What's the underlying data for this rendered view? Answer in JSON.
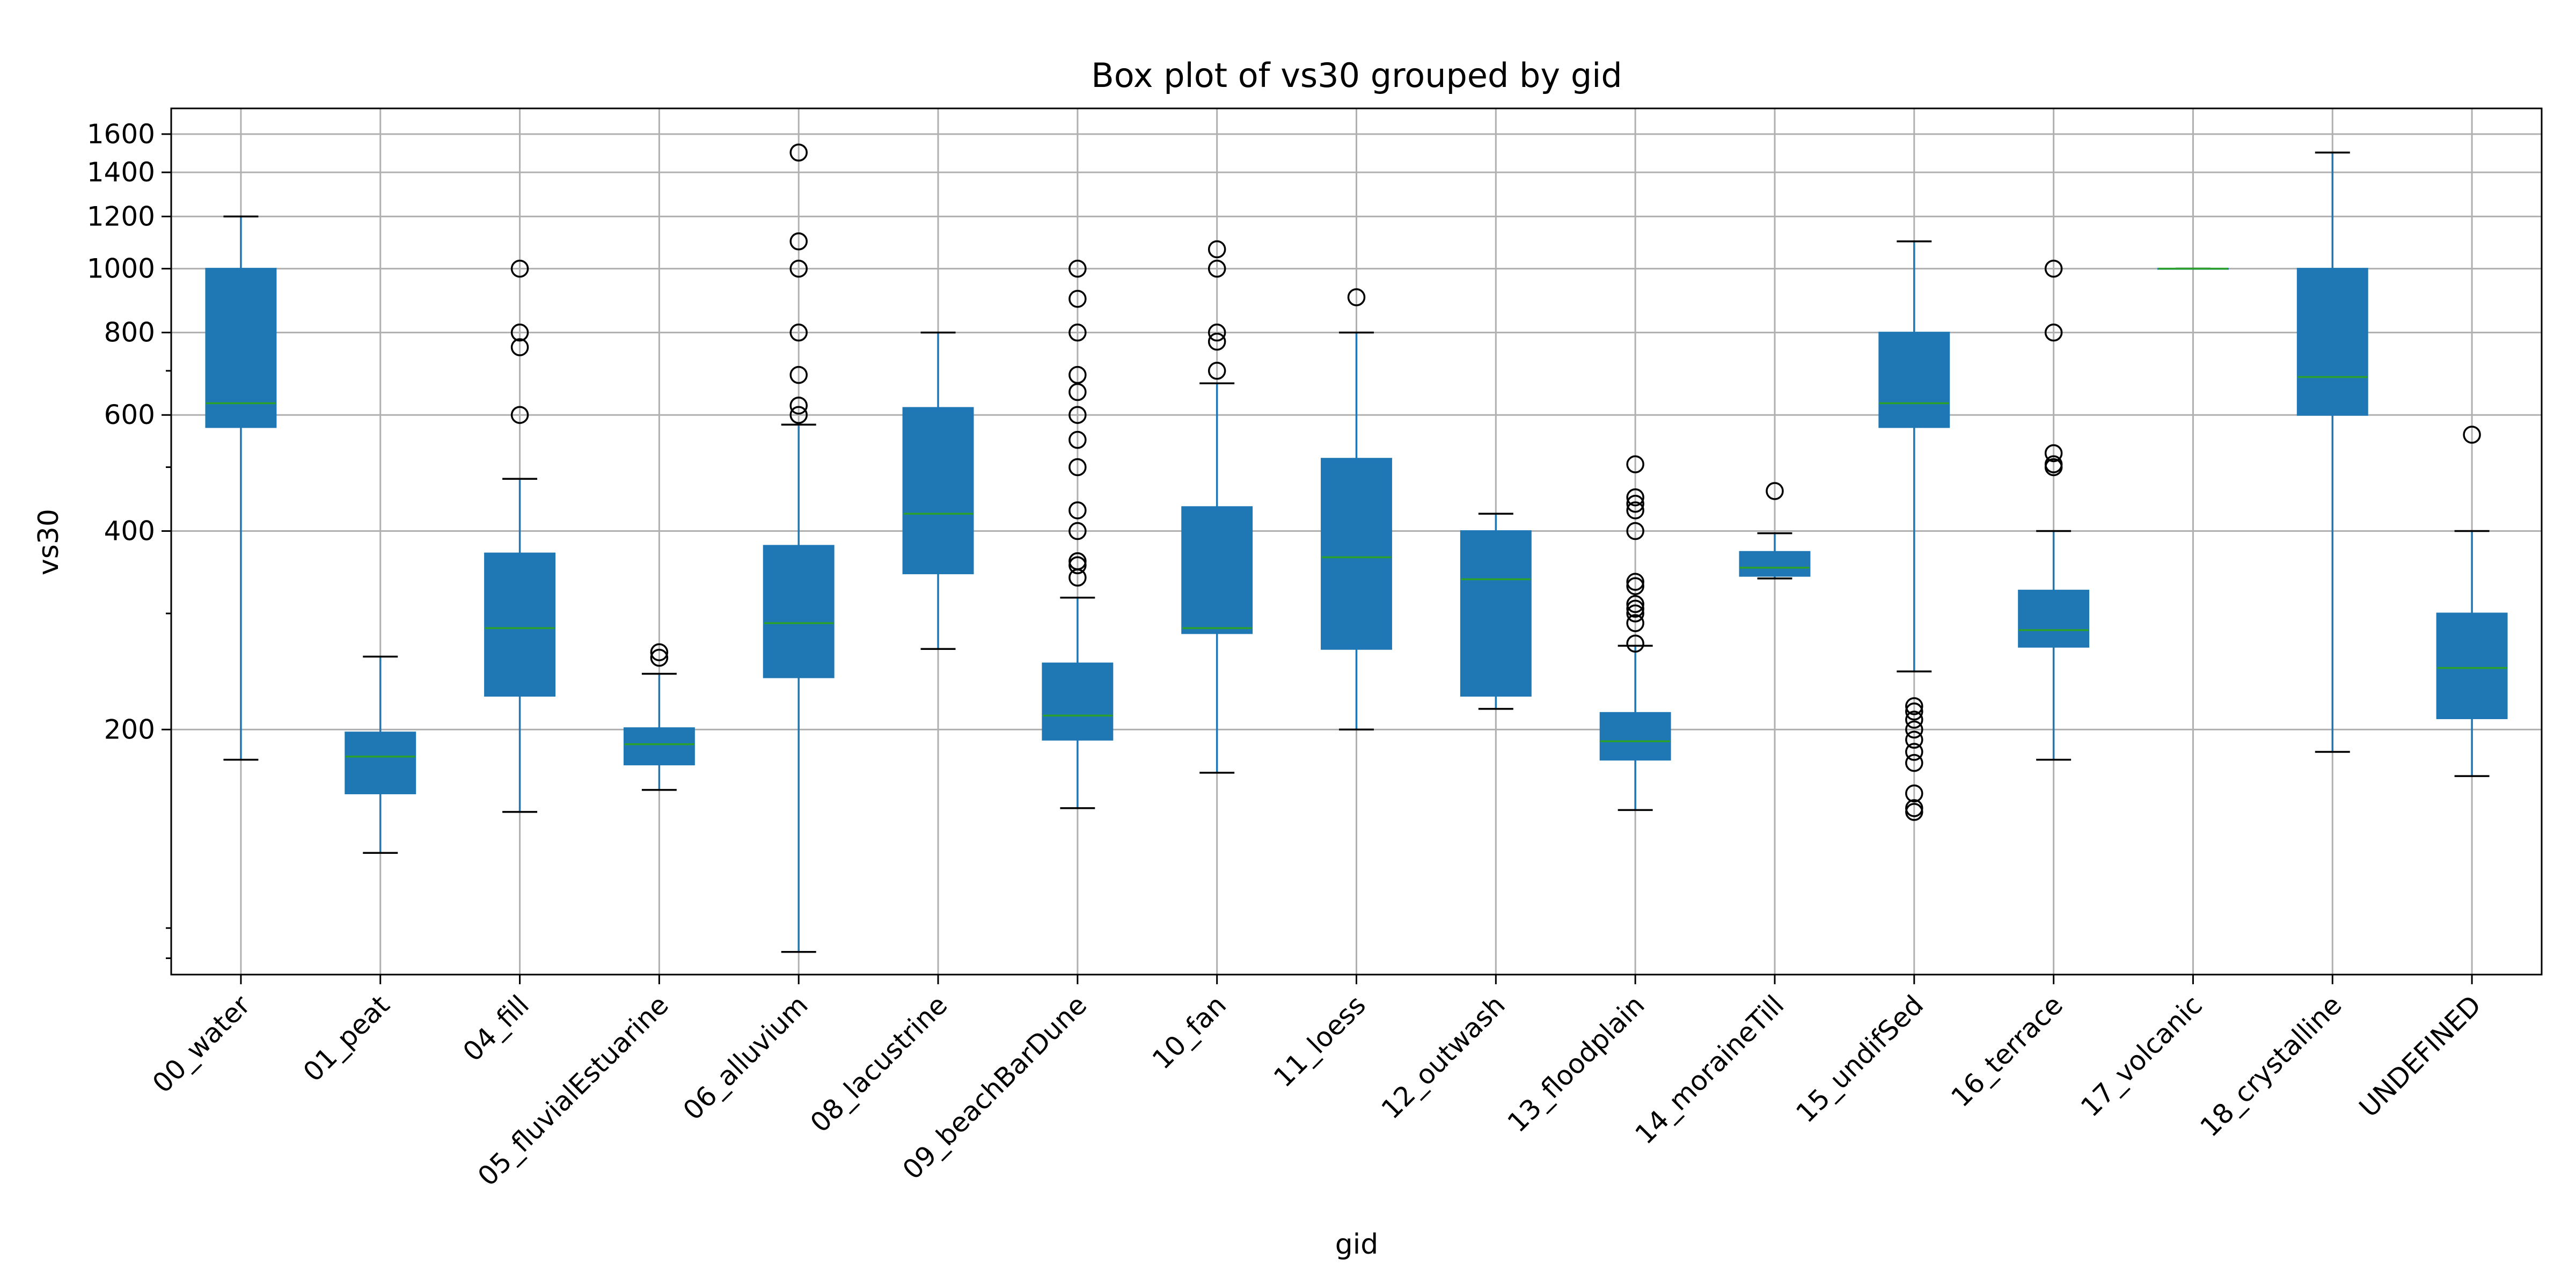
{
  "chart_data": {
    "type": "box",
    "title": "Box plot of vs30 grouped by gid",
    "xlabel": "gid",
    "ylabel": "vs30",
    "yscale": "log",
    "ylim": [
      85,
      1750
    ],
    "yticks": [
      200,
      400,
      600,
      800,
      1000,
      1200,
      1400,
      1600
    ],
    "grid": true,
    "categories": [
      "00_water",
      "01_peat",
      "04_fill",
      "05_fluvialEstuarine",
      "06_alluvium",
      "08_lacustrine",
      "09_beachBarDune",
      "10_fan",
      "11_loess",
      "12_outwash",
      "13_floodplain",
      "14_moraineTill",
      "15_undifSed",
      "16_terrace",
      "17_volcanic",
      "18_crystalline",
      "UNDEFINED"
    ],
    "boxes": [
      {
        "whislo": 180,
        "q1": 575,
        "med": 625,
        "q3": 1000,
        "whishi": 1200,
        "fliers": []
      },
      {
        "whislo": 130,
        "q1": 160,
        "med": 182,
        "q3": 198,
        "whishi": 258,
        "fliers": []
      },
      {
        "whislo": 150,
        "q1": 225,
        "med": 285,
        "q3": 370,
        "whishi": 480,
        "fliers": [
          600,
          760,
          800,
          1000
        ]
      },
      {
        "whislo": 162,
        "q1": 177,
        "med": 190,
        "q3": 201,
        "whishi": 243,
        "fliers": [
          257,
          262
        ]
      },
      {
        "whislo": 92,
        "q1": 240,
        "med": 290,
        "q3": 380,
        "whishi": 580,
        "fliers": [
          600,
          620,
          690,
          800,
          1000,
          1100,
          1500
        ]
      },
      {
        "whislo": 265,
        "q1": 345,
        "med": 425,
        "q3": 615,
        "whishi": 800,
        "fliers": []
      },
      {
        "whislo": 152,
        "q1": 193,
        "med": 210,
        "q3": 252,
        "whishi": 317,
        "fliers": [
          340,
          355,
          360,
          400,
          430,
          500,
          550,
          600,
          650,
          690,
          800,
          900,
          1000
        ]
      },
      {
        "whislo": 172,
        "q1": 280,
        "med": 285,
        "q3": 435,
        "whishi": 670,
        "fliers": [
          700,
          775,
          800,
          1000,
          1070
        ]
      },
      {
        "whislo": 200,
        "q1": 265,
        "med": 365,
        "q3": 515,
        "whishi": 800,
        "fliers": [
          905
        ]
      },
      {
        "whislo": 215,
        "q1": 225,
        "med": 338,
        "q3": 400,
        "whishi": 425,
        "fliers": []
      },
      {
        "whislo": 151,
        "q1": 180,
        "med": 192,
        "q3": 212,
        "whishi": 268,
        "fliers": [
          270,
          290,
          300,
          305,
          310,
          330,
          335,
          400,
          430,
          440,
          450,
          505
        ]
      },
      {
        "whislo": 339,
        "q1": 342,
        "med": 352,
        "q3": 372,
        "whishi": 397,
        "fliers": [
          460
        ]
      },
      {
        "whislo": 245,
        "q1": 575,
        "med": 625,
        "q3": 800,
        "whishi": 1100,
        "fliers": [
          150,
          152,
          160,
          178,
          185,
          193,
          200,
          207,
          213,
          217
        ]
      },
      {
        "whislo": 180,
        "q1": 267,
        "med": 283,
        "q3": 325,
        "whishi": 400,
        "fliers": [
          500,
          505,
          525,
          800,
          1000
        ]
      },
      {
        "whislo": 1000,
        "q1": 1000,
        "med": 1000,
        "q3": 1000,
        "whishi": 1000,
        "fliers": []
      },
      {
        "whislo": 185,
        "q1": 600,
        "med": 685,
        "q3": 1000,
        "whishi": 1500,
        "fliers": []
      },
      {
        "whislo": 170,
        "q1": 208,
        "med": 248,
        "q3": 300,
        "whishi": 400,
        "fliers": [
          560
        ]
      }
    ],
    "colors": {
      "box": "#1f77b4",
      "median": "#2ca02c",
      "grid": "#b0b0b0"
    }
  }
}
